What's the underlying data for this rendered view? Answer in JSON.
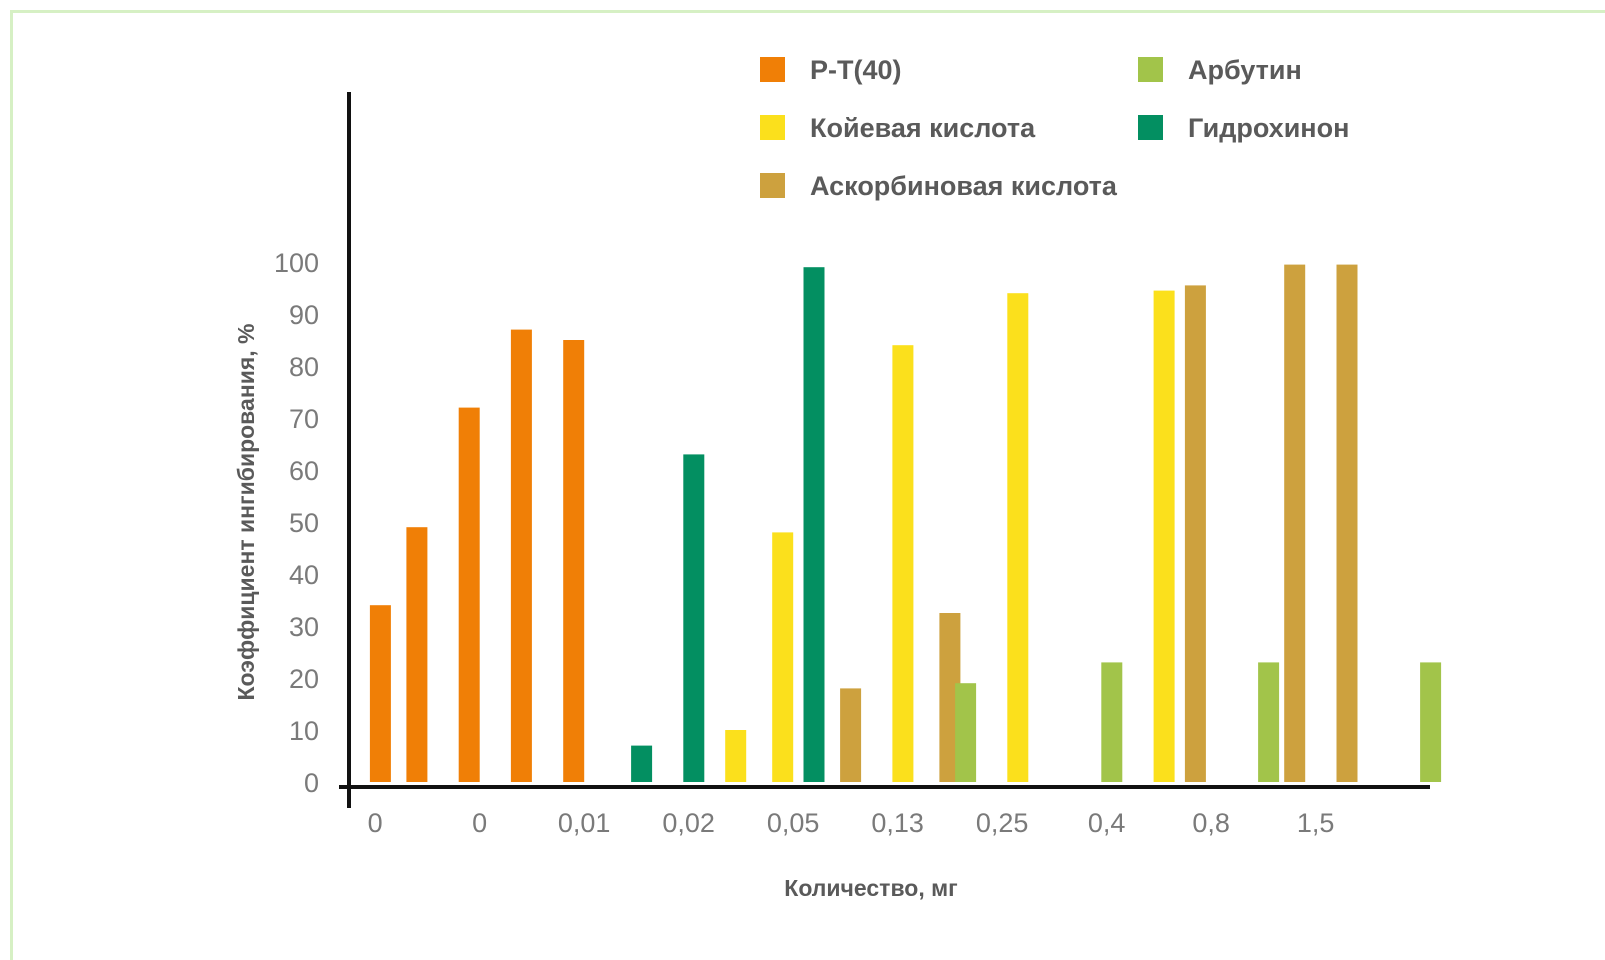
{
  "chart_data": {
    "type": "bar",
    "title": "",
    "xlabel": "Количество, мг",
    "ylabel": "Коэффициент ингибирования, %",
    "ylim": [
      0,
      100
    ],
    "yticks": [
      0,
      10,
      20,
      30,
      40,
      50,
      60,
      70,
      80,
      90,
      100
    ],
    "categories": [
      "0",
      "0",
      "0,01",
      "0,02",
      "0,05",
      "0,13",
      "0,25",
      "0,4",
      "0,8",
      "1,5"
    ],
    "legend_position": "top-right",
    "grid": false,
    "series": [
      {
        "name": "Р-Т(40)",
        "color": "#f07f06",
        "points": [
          {
            "x": 0.3,
            "y": 34
          },
          {
            "x": 0.65,
            "y": 49
          },
          {
            "x": 1.15,
            "y": 72
          },
          {
            "x": 1.65,
            "y": 87
          },
          {
            "x": 2.15,
            "y": 85
          }
        ]
      },
      {
        "name": "Койевая кислота",
        "color": "#fbe01c",
        "points": [
          {
            "x": 3.7,
            "y": 10
          },
          {
            "x": 4.15,
            "y": 48
          },
          {
            "x": 5.3,
            "y": 84
          },
          {
            "x": 6.4,
            "y": 94
          },
          {
            "x": 7.8,
            "y": 94.5
          }
        ]
      },
      {
        "name": "Аскорбиновая кислота",
        "color": "#cda13e",
        "points": [
          {
            "x": 4.8,
            "y": 18
          },
          {
            "x": 5.75,
            "y": 32.5
          },
          {
            "x": 8.1,
            "y": 95.5
          },
          {
            "x": 9.05,
            "y": 99.5
          },
          {
            "x": 9.55,
            "y": 99.5
          }
        ]
      },
      {
        "name": "Арбутин",
        "color": "#a2c44a",
        "points": [
          {
            "x": 5.9,
            "y": 19
          },
          {
            "x": 7.3,
            "y": 23
          },
          {
            "x": 8.8,
            "y": 23
          },
          {
            "x": 10.35,
            "y": 23
          }
        ]
      },
      {
        "name": "Гидрохинон",
        "color": "#038f61",
        "points": [
          {
            "x": 2.8,
            "y": 7
          },
          {
            "x": 3.3,
            "y": 63
          },
          {
            "x": 4.45,
            "y": 99
          }
        ]
      }
    ]
  }
}
